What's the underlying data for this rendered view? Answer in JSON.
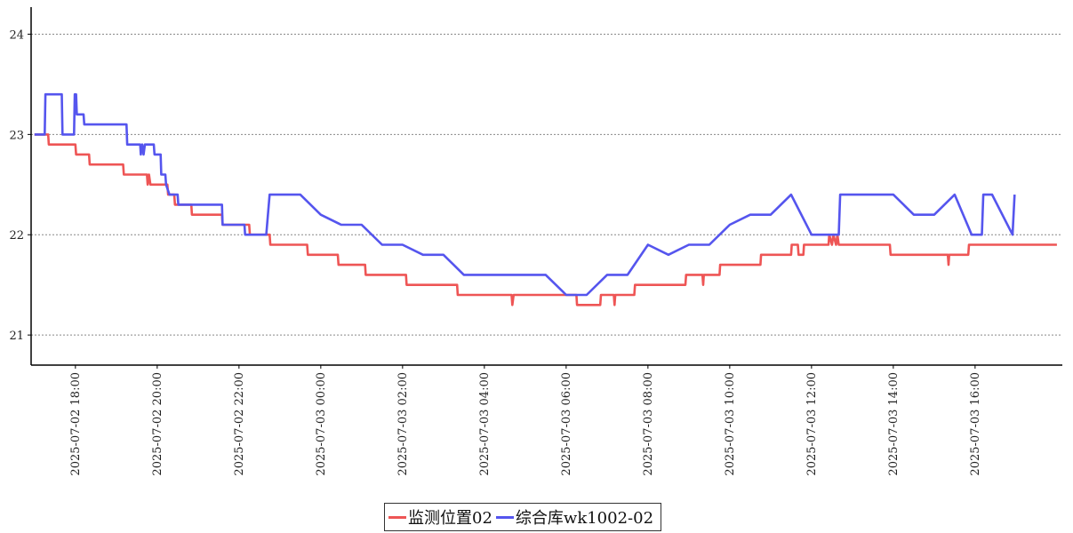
{
  "chart_data": {
    "type": "line",
    "x_ticks": [
      "2025-07-02 18:00",
      "2025-07-02 20:00",
      "2025-07-02 22:00",
      "2025-07-03 00:00",
      "2025-07-03 02:00",
      "2025-07-03 04:00",
      "2025-07-03 06:00",
      "2025-07-03 08:00",
      "2025-07-03 10:00",
      "2025-07-03 12:00",
      "2025-07-03 14:00",
      "2025-07-03 16:00"
    ],
    "y_ticks": [
      21,
      22,
      23,
      24
    ],
    "ylim": [
      20.7,
      24.27
    ],
    "xlim": [
      "2025-07-02 16:55",
      "2025-07-03 18:08"
    ],
    "grid": "horizontal-dotted",
    "legend_position": "bottom-center",
    "series": [
      {
        "name": "监测位置02",
        "color": "#ee5555",
        "points": [
          [
            "2025-07-02 17:00",
            23.0
          ],
          [
            "2025-07-02 17:20",
            23.0
          ],
          [
            "2025-07-02 17:21",
            22.9
          ],
          [
            "2025-07-02 18:00",
            22.9
          ],
          [
            "2025-07-02 18:01",
            22.8
          ],
          [
            "2025-07-02 18:20",
            22.8
          ],
          [
            "2025-07-02 18:21",
            22.7
          ],
          [
            "2025-07-02 19:10",
            22.7
          ],
          [
            "2025-07-02 19:11",
            22.6
          ],
          [
            "2025-07-02 19:45",
            22.6
          ],
          [
            "2025-07-02 19:46",
            22.5
          ],
          [
            "2025-07-02 19:48",
            22.6
          ],
          [
            "2025-07-02 19:50",
            22.5
          ],
          [
            "2025-07-02 20:15",
            22.5
          ],
          [
            "2025-07-02 20:16",
            22.4
          ],
          [
            "2025-07-02 20:25",
            22.4
          ],
          [
            "2025-07-02 20:26",
            22.3
          ],
          [
            "2025-07-02 20:50",
            22.3
          ],
          [
            "2025-07-02 20:51",
            22.2
          ],
          [
            "2025-07-02 21:35",
            22.2
          ],
          [
            "2025-07-02 21:36",
            22.1
          ],
          [
            "2025-07-02 22:15",
            22.1
          ],
          [
            "2025-07-02 22:16",
            22.0
          ],
          [
            "2025-07-02 22:45",
            22.0
          ],
          [
            "2025-07-02 22:46",
            21.9
          ],
          [
            "2025-07-02 23:40",
            21.9
          ],
          [
            "2025-07-02 23:41",
            21.8
          ],
          [
            "2025-07-03 00:25",
            21.8
          ],
          [
            "2025-07-03 00:26",
            21.7
          ],
          [
            "2025-07-03 01:05",
            21.7
          ],
          [
            "2025-07-03 01:06",
            21.6
          ],
          [
            "2025-07-03 02:05",
            21.6
          ],
          [
            "2025-07-03 02:06",
            21.5
          ],
          [
            "2025-07-03 03:20",
            21.5
          ],
          [
            "2025-07-03 03:21",
            21.4
          ],
          [
            "2025-07-03 04:40",
            21.4
          ],
          [
            "2025-07-03 04:41",
            21.3
          ],
          [
            "2025-07-03 04:43",
            21.4
          ],
          [
            "2025-07-03 06:15",
            21.4
          ],
          [
            "2025-07-03 06:16",
            21.3
          ],
          [
            "2025-07-03 06:50",
            21.3
          ],
          [
            "2025-07-03 06:51",
            21.4
          ],
          [
            "2025-07-03 07:10",
            21.4
          ],
          [
            "2025-07-03 07:11",
            21.3
          ],
          [
            "2025-07-03 07:12",
            21.4
          ],
          [
            "2025-07-03 07:40",
            21.4
          ],
          [
            "2025-07-03 07:41",
            21.5
          ],
          [
            "2025-07-03 08:55",
            21.5
          ],
          [
            "2025-07-03 08:56",
            21.6
          ],
          [
            "2025-07-03 09:20",
            21.6
          ],
          [
            "2025-07-03 09:21",
            21.5
          ],
          [
            "2025-07-03 09:22",
            21.6
          ],
          [
            "2025-07-03 09:45",
            21.6
          ],
          [
            "2025-07-03 09:46",
            21.7
          ],
          [
            "2025-07-03 10:45",
            21.7
          ],
          [
            "2025-07-03 10:46",
            21.8
          ],
          [
            "2025-07-03 11:30",
            21.8
          ],
          [
            "2025-07-03 11:31",
            21.9
          ],
          [
            "2025-07-03 11:40",
            21.9
          ],
          [
            "2025-07-03 11:41",
            21.8
          ],
          [
            "2025-07-03 11:48",
            21.8
          ],
          [
            "2025-07-03 11:49",
            21.9
          ],
          [
            "2025-07-03 12:25",
            21.9
          ],
          [
            "2025-07-03 12:26",
            22.0
          ],
          [
            "2025-07-03 12:30",
            21.9
          ],
          [
            "2025-07-03 12:32",
            22.0
          ],
          [
            "2025-07-03 12:36",
            21.9
          ],
          [
            "2025-07-03 12:38",
            22.0
          ],
          [
            "2025-07-03 12:40",
            21.9
          ],
          [
            "2025-07-03 13:55",
            21.9
          ],
          [
            "2025-07-03 13:56",
            21.8
          ],
          [
            "2025-07-03 15:20",
            21.8
          ],
          [
            "2025-07-03 15:21",
            21.7
          ],
          [
            "2025-07-03 15:22",
            21.8
          ],
          [
            "2025-07-03 15:50",
            21.8
          ],
          [
            "2025-07-03 15:51",
            21.9
          ],
          [
            "2025-07-03 18:00",
            21.9
          ]
        ]
      },
      {
        "name": "综合库wk1002-02",
        "color": "#5555ee",
        "points": [
          [
            "2025-07-02 17:00",
            23.0
          ],
          [
            "2025-07-02 17:15",
            23.0
          ],
          [
            "2025-07-02 17:16",
            23.4
          ],
          [
            "2025-07-02 17:40",
            23.4
          ],
          [
            "2025-07-02 17:41",
            23.0
          ],
          [
            "2025-07-02 17:58",
            23.0
          ],
          [
            "2025-07-02 17:59",
            23.4
          ],
          [
            "2025-07-02 18:01",
            23.4
          ],
          [
            "2025-07-02 18:02",
            23.2
          ],
          [
            "2025-07-02 18:12",
            23.2
          ],
          [
            "2025-07-02 18:13",
            23.1
          ],
          [
            "2025-07-02 19:15",
            23.1
          ],
          [
            "2025-07-02 19:16",
            22.9
          ],
          [
            "2025-07-02 19:35",
            22.9
          ],
          [
            "2025-07-02 19:36",
            22.8
          ],
          [
            "2025-07-02 19:38",
            22.9
          ],
          [
            "2025-07-02 19:40",
            22.8
          ],
          [
            "2025-07-02 19:42",
            22.9
          ],
          [
            "2025-07-02 19:55",
            22.9
          ],
          [
            "2025-07-02 19:56",
            22.8
          ],
          [
            "2025-07-02 20:05",
            22.8
          ],
          [
            "2025-07-02 20:06",
            22.6
          ],
          [
            "2025-07-02 20:12",
            22.6
          ],
          [
            "2025-07-02 20:13",
            22.5
          ],
          [
            "2025-07-02 20:18",
            22.4
          ],
          [
            "2025-07-02 20:30",
            22.4
          ],
          [
            "2025-07-02 20:31",
            22.3
          ],
          [
            "2025-07-02 21:35",
            22.3
          ],
          [
            "2025-07-02 21:36",
            22.1
          ],
          [
            "2025-07-02 22:08",
            22.1
          ],
          [
            "2025-07-02 22:09",
            22.0
          ],
          [
            "2025-07-02 22:40",
            22.0
          ],
          [
            "2025-07-02 22:45",
            22.4
          ],
          [
            "2025-07-02 23:30",
            22.4
          ],
          [
            "2025-07-03 00:00",
            22.2
          ],
          [
            "2025-07-03 00:30",
            22.1
          ],
          [
            "2025-07-03 01:00",
            22.1
          ],
          [
            "2025-07-03 01:30",
            21.9
          ],
          [
            "2025-07-03 02:00",
            21.9
          ],
          [
            "2025-07-03 02:30",
            21.8
          ],
          [
            "2025-07-03 03:00",
            21.8
          ],
          [
            "2025-07-03 03:30",
            21.6
          ],
          [
            "2025-07-03 05:30",
            21.6
          ],
          [
            "2025-07-03 06:00",
            21.4
          ],
          [
            "2025-07-03 06:30",
            21.4
          ],
          [
            "2025-07-03 07:00",
            21.6
          ],
          [
            "2025-07-03 07:30",
            21.6
          ],
          [
            "2025-07-03 08:00",
            21.9
          ],
          [
            "2025-07-03 08:30",
            21.8
          ],
          [
            "2025-07-03 09:00",
            21.9
          ],
          [
            "2025-07-03 09:30",
            21.9
          ],
          [
            "2025-07-03 10:00",
            22.1
          ],
          [
            "2025-07-03 10:30",
            22.2
          ],
          [
            "2025-07-03 11:00",
            22.2
          ],
          [
            "2025-07-03 11:30",
            22.4
          ],
          [
            "2025-07-03 12:00",
            22.0
          ],
          [
            "2025-07-03 12:40",
            22.0
          ],
          [
            "2025-07-03 12:42",
            22.4
          ],
          [
            "2025-07-03 14:00",
            22.4
          ],
          [
            "2025-07-03 14:30",
            22.2
          ],
          [
            "2025-07-03 15:00",
            22.2
          ],
          [
            "2025-07-03 15:30",
            22.4
          ],
          [
            "2025-07-03 15:55",
            22.0
          ],
          [
            "2025-07-03 16:10",
            22.0
          ],
          [
            "2025-07-03 16:12",
            22.4
          ],
          [
            "2025-07-03 16:25",
            22.4
          ],
          [
            "2025-07-03 16:55",
            22.0
          ],
          [
            "2025-07-03 16:58",
            22.4
          ]
        ]
      }
    ]
  }
}
